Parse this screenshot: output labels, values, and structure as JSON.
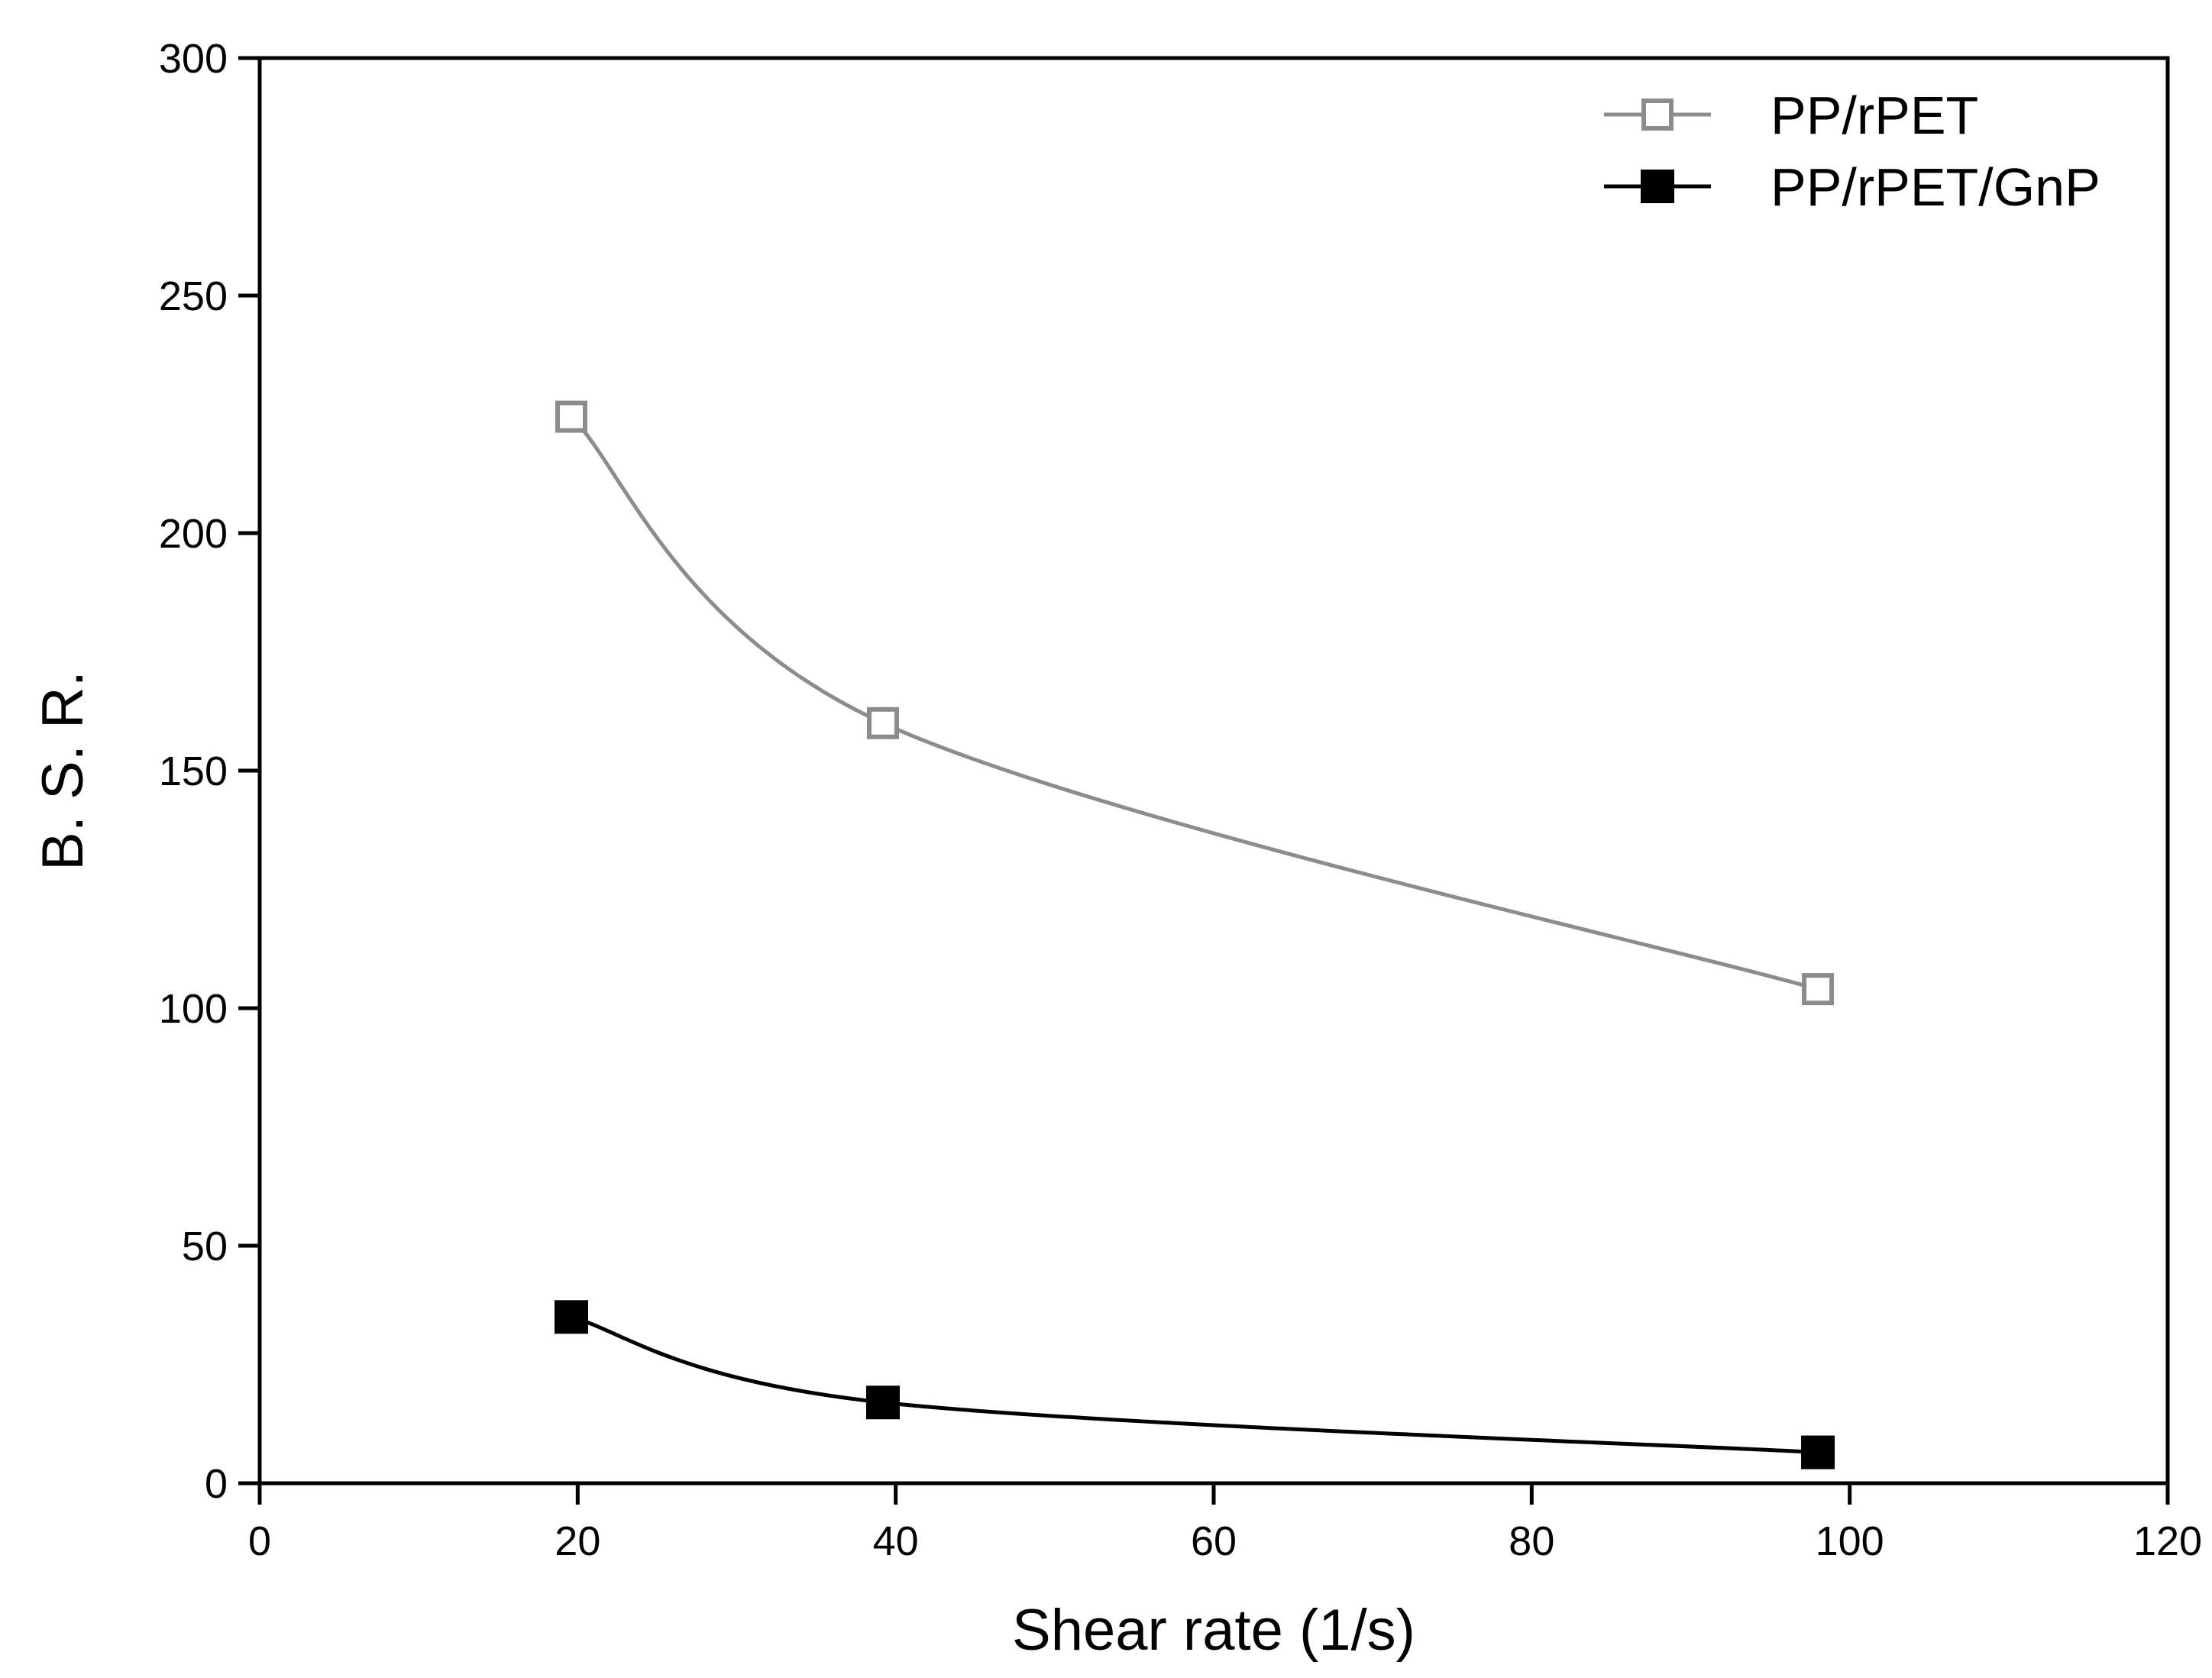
{
  "chart_data": {
    "type": "line",
    "title": "",
    "xlabel": "Shear rate (1/s)",
    "ylabel": "B. S. R.",
    "xlim": [
      0,
      120
    ],
    "ylim": [
      0,
      300
    ],
    "xticks": [
      0,
      20,
      40,
      60,
      80,
      100,
      120
    ],
    "yticks": [
      0,
      50,
      100,
      150,
      200,
      250,
      300
    ],
    "grid": false,
    "legend_position": "top-right",
    "series": [
      {
        "name": "PP/rPET",
        "color": "#8c8c8c",
        "marker": "open-square",
        "x": [
          19.6,
          39.2,
          98
        ],
        "y": [
          224.5,
          160,
          104
        ]
      },
      {
        "name": "PP/rPET/GnP",
        "color": "#000000",
        "marker": "filled-square",
        "x": [
          19.6,
          39.2,
          98
        ],
        "y": [
          35,
          17,
          6.5
        ]
      }
    ]
  }
}
